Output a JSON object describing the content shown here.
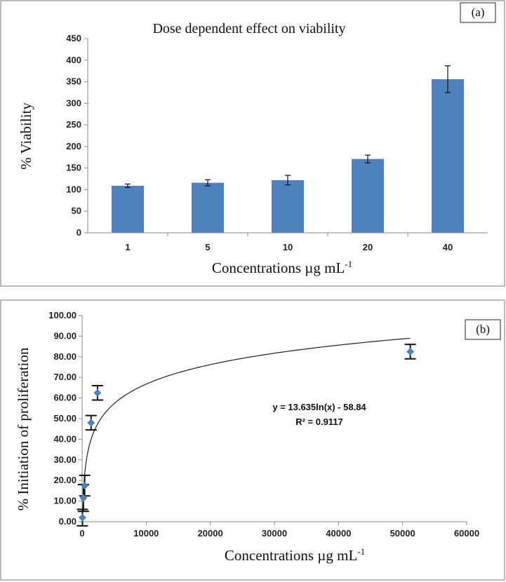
{
  "chart_data": [
    {
      "type": "bar",
      "panel_label": "(a)",
      "title": "Dose dependent effect on viability",
      "xlabel_main": "Concentrations µg mL",
      "xlabel_sup": "-1",
      "ylabel": "% Viability",
      "categories": [
        "1",
        "5",
        "10",
        "20",
        "40"
      ],
      "values": [
        109,
        116,
        122,
        171,
        356
      ],
      "errors": [
        4,
        7,
        11,
        9,
        31
      ],
      "ylim": [
        0,
        450
      ],
      "yticks": [
        "0",
        "50",
        "100",
        "150",
        "200",
        "250",
        "300",
        "350",
        "400",
        "450"
      ],
      "bar_color": "#4f81bd",
      "grid": false
    },
    {
      "type": "scatter",
      "panel_label": "(b)",
      "xlabel_main": "Concentrations µg mL",
      "xlabel_sup": "-1",
      "ylabel": "% Initiation of proliferation",
      "points": [
        {
          "x": 50,
          "y": 2.0,
          "err": 4.0
        },
        {
          "x": 200,
          "y": 11.5,
          "err": 6.5
        },
        {
          "x": 400,
          "y": 17.5,
          "err": 5.0
        },
        {
          "x": 1400,
          "y": 48.0,
          "err": 3.5
        },
        {
          "x": 2400,
          "y": 62.5,
          "err": 3.5
        },
        {
          "x": 51200,
          "y": 82.5,
          "err": 3.5
        }
      ],
      "trendline": {
        "a": 13.635,
        "b": -58.84,
        "x_start": 100,
        "x_end": 51200
      },
      "equation": "y = 13.635ln(x) - 58.84",
      "r_squared": "R² = 0.9117",
      "xlim": [
        0,
        60000
      ],
      "ylim": [
        0,
        100
      ],
      "xticks": [
        "0",
        "10000",
        "20000",
        "30000",
        "40000",
        "50000",
        "60000"
      ],
      "yticks": [
        "0.00",
        "10.00",
        "20.00",
        "30.00",
        "40.00",
        "50.00",
        "60.00",
        "70.00",
        "80.00",
        "90.00",
        "100.00"
      ],
      "marker_color": "#4f81bd",
      "grid": false
    }
  ]
}
